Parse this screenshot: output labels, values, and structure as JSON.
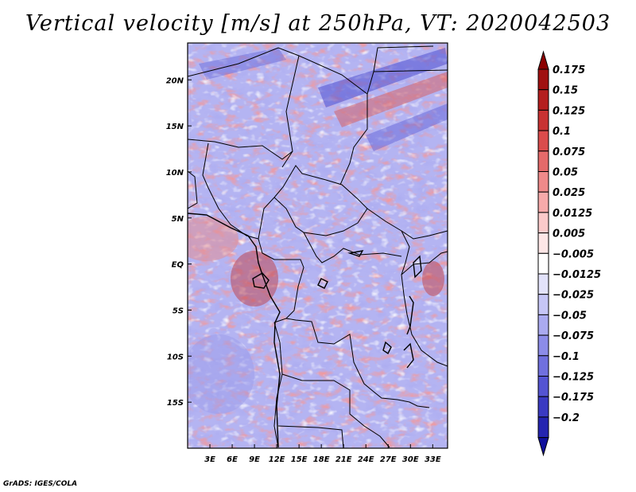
{
  "title": "Vertical velocity [m/s] at 250hPa, VT: 2020042503",
  "credit": "GrADS: IGES/COLA",
  "map": {
    "variable": "Vertical velocity",
    "units": "m/s",
    "level": "250hPa",
    "valid_time": "2020042503",
    "lon_range": [
      0,
      35
    ],
    "lat_range": [
      -20,
      24
    ],
    "x_ticks": [
      {
        "lon": 3,
        "label": "3E"
      },
      {
        "lon": 6,
        "label": "6E"
      },
      {
        "lon": 9,
        "label": "9E"
      },
      {
        "lon": 12,
        "label": "12E"
      },
      {
        "lon": 15,
        "label": "15E"
      },
      {
        "lon": 18,
        "label": "18E"
      },
      {
        "lon": 21,
        "label": "21E"
      },
      {
        "lon": 24,
        "label": "24E"
      },
      {
        "lon": 27,
        "label": "27E"
      },
      {
        "lon": 30,
        "label": "30E"
      },
      {
        "lon": 33,
        "label": "33E"
      }
    ],
    "y_ticks": [
      {
        "lat": 20,
        "label": "20N"
      },
      {
        "lat": 15,
        "label": "15N"
      },
      {
        "lat": 10,
        "label": "10N"
      },
      {
        "lat": 5,
        "label": "5N"
      },
      {
        "lat": 0,
        "label": "EQ"
      },
      {
        "lat": -5,
        "label": "5S"
      },
      {
        "lat": -10,
        "label": "10S"
      },
      {
        "lat": -15,
        "label": "15S"
      }
    ]
  },
  "colorbar": {
    "levels": [
      {
        "label": "0.175",
        "color": "#a01010"
      },
      {
        "label": "0.15",
        "color": "#b41e1e"
      },
      {
        "label": "0.125",
        "color": "#c83232"
      },
      {
        "label": "0.1",
        "color": "#da4c4c"
      },
      {
        "label": "0.075",
        "color": "#e46a6a"
      },
      {
        "label": "0.05",
        "color": "#ee8a8a"
      },
      {
        "label": "0.025",
        "color": "#f6aaaa"
      },
      {
        "label": "0.0125",
        "color": "#fbcaca"
      },
      {
        "label": "0.005",
        "color": "#fde6e6"
      },
      {
        "label": "−0.005",
        "color": "#ffffff"
      },
      {
        "label": "−0.0125",
        "color": "#e2e2fa"
      },
      {
        "label": "−0.025",
        "color": "#c6c6f6"
      },
      {
        "label": "−0.05",
        "color": "#aaaaf0"
      },
      {
        "label": "−0.075",
        "color": "#8c8ce8"
      },
      {
        "label": "−0.1",
        "color": "#7070de"
      },
      {
        "label": "−0.125",
        "color": "#5454d2"
      },
      {
        "label": "−0.175",
        "color": "#3a3ac2"
      },
      {
        "label": "−0.2",
        "color": "#2424b0"
      }
    ],
    "top_color": "#8c0000",
    "bottom_color": "#10109c"
  }
}
